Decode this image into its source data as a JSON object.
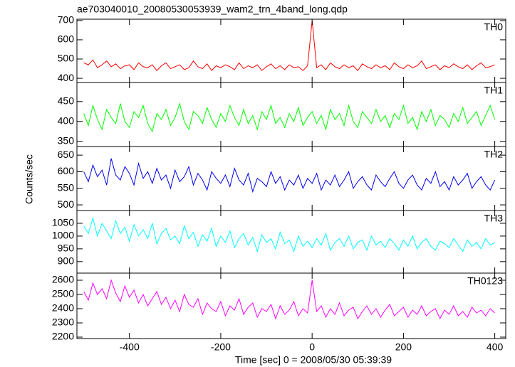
{
  "chart_data": {
    "type": "line",
    "title": "ae703040010_20080530053939_wam2_trn_4band_long.qdp",
    "x_label": "Time [sec] 0 = 2008/05/30 05:39:39",
    "y_label": "Counts/sec",
    "xlim": [
      -515,
      424
    ],
    "xticks": [
      -400,
      -200,
      0,
      200,
      400
    ],
    "x": [
      -500,
      -490,
      -480,
      -470,
      -460,
      -450,
      -440,
      -430,
      -420,
      -410,
      -400,
      -390,
      -380,
      -370,
      -360,
      -350,
      -340,
      -330,
      -320,
      -310,
      -300,
      -290,
      -280,
      -270,
      -260,
      -250,
      -240,
      -230,
      -220,
      -210,
      -200,
      -190,
      -180,
      -170,
      -160,
      -150,
      -140,
      -130,
      -120,
      -110,
      -100,
      -90,
      -80,
      -70,
      -60,
      -50,
      -40,
      -30,
      -20,
      -10,
      0,
      10,
      20,
      30,
      40,
      50,
      60,
      70,
      80,
      90,
      100,
      110,
      120,
      130,
      140,
      150,
      160,
      170,
      180,
      190,
      200,
      210,
      220,
      230,
      240,
      250,
      260,
      270,
      280,
      290,
      300,
      310,
      320,
      330,
      340,
      350,
      360,
      370,
      380,
      390,
      400
    ],
    "series": [
      {
        "name": "TH0",
        "color": "#ff0000",
        "ylim": [
          378,
          707
        ],
        "yticks": [
          400,
          500,
          600,
          700
        ],
        "values": [
          480,
          470,
          495,
          455,
          470,
          490,
          460,
          475,
          450,
          465,
          470,
          445,
          480,
          460,
          455,
          470,
          440,
          465,
          480,
          450,
          460,
          470,
          445,
          455,
          490,
          460,
          450,
          475,
          440,
          465,
          455,
          470,
          460,
          445,
          480,
          450,
          465,
          455,
          470,
          440,
          460,
          475,
          450,
          465,
          445,
          470,
          455,
          460,
          440,
          465,
          700,
          455,
          470,
          445,
          480,
          460,
          450,
          470,
          455,
          465,
          440,
          475,
          460,
          450,
          470,
          455,
          465,
          445,
          480,
          460,
          450,
          470,
          455,
          465,
          490,
          450,
          460,
          470,
          445,
          465,
          455,
          475,
          460,
          450,
          470,
          445,
          465,
          480,
          455,
          460,
          470
        ]
      },
      {
        "name": "TH1",
        "color": "#00ff00",
        "ylim": [
          337,
          498
        ],
        "yticks": [
          350,
          400,
          450
        ],
        "values": [
          420,
          390,
          440,
          405,
          380,
          430,
          410,
          395,
          445,
          400,
          385,
          425,
          410,
          440,
          395,
          375,
          420,
          405,
          430,
          390,
          410,
          445,
          400,
          380,
          425,
          415,
          395,
          435,
          405,
          385,
          420,
          400,
          440,
          410,
          390,
          430,
          395,
          415,
          380,
          425,
          405,
          440,
          395,
          410,
          385,
          420,
          400,
          435,
          390,
          410,
          425,
          395,
          415,
          380,
          430,
          405,
          420,
          390,
          440,
          400,
          385,
          425,
          410,
          395,
          430,
          400,
          415,
          385,
          420,
          405,
          440,
          395,
          410,
          380,
          425,
          400,
          430,
          390,
          415,
          405,
          385,
          420,
          400,
          435,
          395,
          410,
          425,
          390,
          415,
          440,
          405
        ]
      },
      {
        "name": "TH2",
        "color": "#0000ee",
        "ylim": [
          483,
          676
        ],
        "yticks": [
          500,
          550,
          600,
          650
        ],
        "values": [
          600,
          570,
          620,
          585,
          605,
          560,
          640,
          590,
          575,
          615,
          595,
          560,
          625,
          580,
          600,
          565,
          610,
          575,
          590,
          550,
          605,
          570,
          585,
          615,
          560,
          595,
          575,
          545,
          600,
          580,
          565,
          590,
          555,
          610,
          575,
          560,
          595,
          540,
          580,
          570,
          555,
          600,
          565,
          585,
          545,
          575,
          560,
          590,
          550,
          580,
          565,
          595,
          545,
          575,
          560,
          590,
          555,
          575,
          600,
          550,
          570,
          585,
          560,
          545,
          590,
          570,
          555,
          580,
          600,
          565,
          550,
          575,
          590,
          560,
          545,
          580,
          565,
          600,
          555,
          570,
          545,
          585,
          560,
          575,
          595,
          550,
          570,
          585,
          560,
          545,
          575
        ]
      },
      {
        "name": "TH3",
        "color": "#00ffff",
        "ylim": [
          855,
          1100
        ],
        "yticks": [
          900,
          950,
          1000,
          1050
        ],
        "values": [
          1040,
          1010,
          1070,
          1000,
          1050,
          1020,
          990,
          1060,
          1010,
          1035,
          980,
          1045,
          1000,
          1025,
          990,
          1050,
          970,
          1010,
          1030,
          985,
          1000,
          970,
          1040,
          990,
          1015,
          960,
          1005,
          980,
          1030,
          960,
          1000,
          975,
          1020,
          955,
          990,
          1010,
          965,
          995,
          940,
          1005,
          975,
          990,
          950,
          1015,
          970,
          985,
          940,
          1000,
          960,
          980,
          955,
          990,
          965,
          1010,
          945,
          975,
          990,
          960,
          1000,
          950,
          975,
          985,
          945,
          1000,
          965,
          980,
          955,
          990,
          970,
          945,
          985,
          960,
          1000,
          950,
          975,
          990,
          960,
          945,
          980,
          970,
          955,
          990,
          965,
          940,
          985,
          960,
          975,
          950,
          990,
          965,
          975
        ]
      },
      {
        "name": "TH0123",
        "color": "#ff00ff",
        "ylim": [
          2190,
          2650
        ],
        "yticks": [
          2200,
          2300,
          2400,
          2500,
          2600
        ],
        "values": [
          2520,
          2460,
          2580,
          2500,
          2540,
          2470,
          2600,
          2510,
          2450,
          2560,
          2480,
          2530,
          2440,
          2500,
          2420,
          2470,
          2520,
          2430,
          2480,
          2400,
          2460,
          2380,
          2500,
          2430,
          2410,
          2470,
          2360,
          2440,
          2400,
          2380,
          2450,
          2350,
          2420,
          2390,
          2470,
          2360,
          2410,
          2440,
          2340,
          2400,
          2380,
          2430,
          2330,
          2420,
          2360,
          2390,
          2450,
          2350,
          2400,
          2370,
          2600,
          2380,
          2420,
          2340,
          2400,
          2360,
          2440,
          2350,
          2390,
          2410,
          2330,
          2380,
          2420,
          2360,
          2400,
          2340,
          2390,
          2430,
          2350,
          2380,
          2410,
          2340,
          2390,
          2360,
          2420,
          2350,
          2380,
          2400,
          2330,
          2390,
          2360,
          2420,
          2350,
          2380,
          2340,
          2410,
          2370,
          2390,
          2350,
          2400,
          2370
        ]
      }
    ]
  }
}
